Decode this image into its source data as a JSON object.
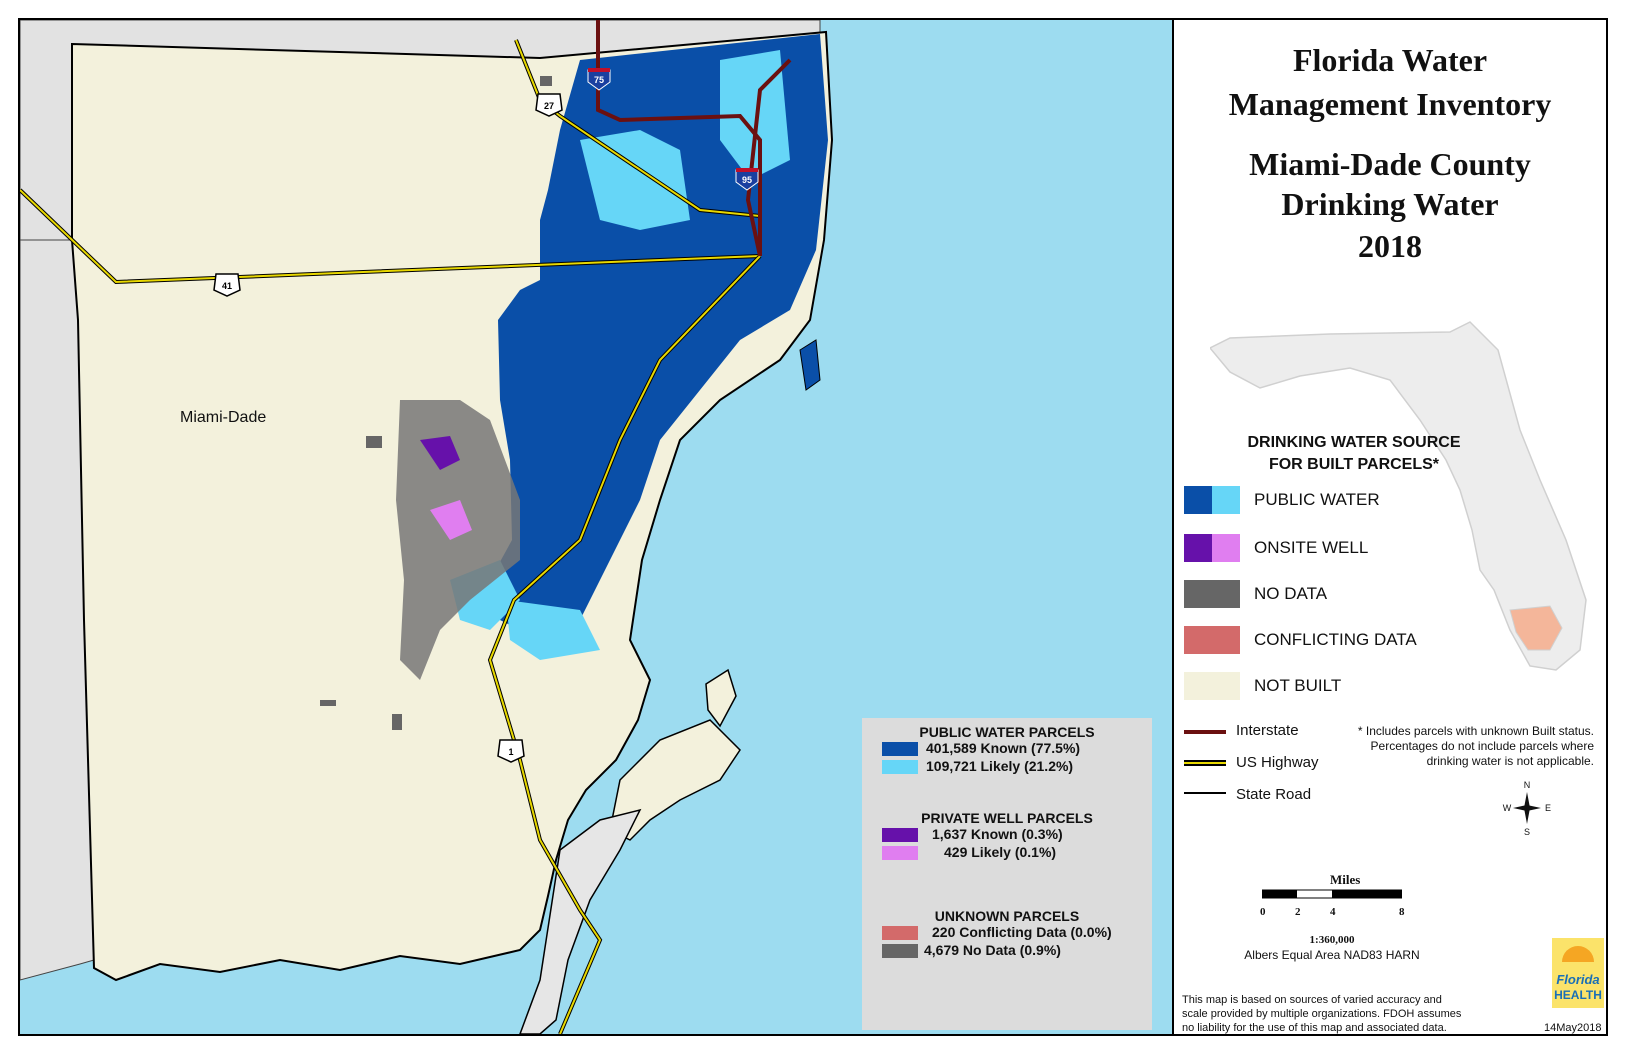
{
  "title": {
    "line1": "Florida Water",
    "line2": "Management Inventory",
    "line3": "Miami-Dade County",
    "line4": "Drinking Water",
    "line5": "2018"
  },
  "map": {
    "county_label": "Miami-Dade",
    "colors": {
      "ocean": "#9ddcf0",
      "not_built": "#f3f1dc",
      "outside": "#e2e2e2",
      "public_known": "#0a4fa8",
      "public_likely": "#66d6f7",
      "well_known": "#6611aa",
      "well_likely": "#e07ef0",
      "no_data": "#666666",
      "conflicting": "#d36a6a",
      "interstate": "#6b1010",
      "us_highway": "#e8d800"
    },
    "shields": {
      "i75": "75",
      "i95": "95",
      "us27": "27",
      "us41": "41",
      "us1": "1"
    }
  },
  "legend": {
    "heading_line1": "DRINKING WATER SOURCE",
    "heading_line2": "FOR BUILT PARCELS*",
    "items": [
      {
        "label": "PUBLIC WATER",
        "color1": "#0a4fa8",
        "color2": "#66d6f7"
      },
      {
        "label": "ONSITE WELL",
        "color1": "#6611aa",
        "color2": "#e07ef0"
      },
      {
        "label": "NO DATA",
        "color1": "#666666",
        "color2": "#666666"
      },
      {
        "label": "CONFLICTING DATA",
        "color1": "#d36a6a",
        "color2": "#d36a6a"
      },
      {
        "label": "NOT BUILT",
        "color1": "#f3f1dc",
        "color2": "#f3f1dc"
      }
    ],
    "lines": {
      "interstate": "Interstate",
      "us_highway": "US Highway",
      "state_road": "State Road"
    },
    "footnote_line1": "* Includes parcels with unknown Built status.",
    "footnote_line2": "Percentages do not include parcels where",
    "footnote_line3": "drinking water is not applicable."
  },
  "summary": {
    "public_head": "PUBLIC WATER PARCELS",
    "public_known": "401,589 Known (77.5%)",
    "public_likely": "109,721 Likely (21.2%)",
    "well_head": "PRIVATE WELL PARCELS",
    "well_known": "1,637 Known (0.3%)",
    "well_likely": "429 Likely (0.1%)",
    "unknown_head": "UNKNOWN PARCELS",
    "conflicting": "220 Conflicting Data (0.0%)",
    "no_data": "4,679 No Data (0.9%)"
  },
  "compass": {
    "n": "N",
    "s": "S",
    "e": "E",
    "w": "W"
  },
  "scale": {
    "title": "Miles",
    "ticks": [
      "0",
      "2",
      "4",
      "8"
    ],
    "ratio": "1:360,000",
    "projection": "Albers Equal Area NAD83 HARN"
  },
  "disclaimer": {
    "line1": "This map is based on sources of varied accuracy and",
    "line2": "scale provided by multiple organizations. FDOH assumes",
    "line3": "no liability for the use of this map and associated data."
  },
  "date": "14May2018",
  "logo": {
    "line1": "Florida",
    "line2": "HEALTH"
  }
}
